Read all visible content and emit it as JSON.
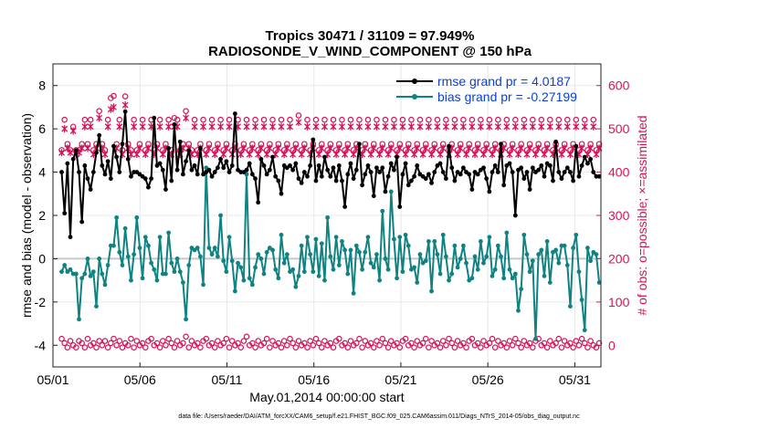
{
  "chart_data": {
    "type": "line",
    "title_line1": "Tropics 30471 / 31109 = 97.949%",
    "title_line2": "RADIOSONDE_V_WIND_COMPONENT @ 150 hPa",
    "xlabel": "May.01,2014 00:00:00 start",
    "ylabel_left": "rmse and bias (model - observation)",
    "ylabel_right": "# of obs: o=possible; ×=assimilated",
    "xlim_days": [
      0,
      31.5
    ],
    "ylim_left": [
      -5,
      9
    ],
    "ylim_right": [
      -50,
      650
    ],
    "x_tick_days": [
      0,
      5,
      10,
      15,
      20,
      25,
      30
    ],
    "x_tick_labels": [
      "05/01",
      "05/06",
      "05/11",
      "05/16",
      "05/21",
      "05/26",
      "05/31"
    ],
    "y_left_ticks": [
      -4,
      -2,
      0,
      2,
      4,
      6,
      8
    ],
    "y_right_ticks": [
      0,
      100,
      200,
      300,
      400,
      500,
      600
    ],
    "footer": "data file: /Users/raeder/DAI/ATM_forcXX/CAM6_setup/f.e21.FHIST_BGC.f09_025.CAM6assim.011/Diags_NTrS_2014-05/obs_diag_output.nc",
    "colors": {
      "rmse": "#000000",
      "bias": "#0f8282",
      "obs_counts": "#d4145a",
      "legend_text": "#0a3fd8",
      "zero_line": "#c8c8c8"
    },
    "series": [
      {
        "name": "rmse",
        "legend": "rmse grand pr = 4.0187",
        "values": [
          4.0,
          2.1,
          4.4,
          1.0,
          4.6,
          5.0,
          4.0,
          1.7,
          4.3,
          3.7,
          3.2,
          4.0,
          4.9,
          5.7,
          4.3,
          3.9,
          4.5,
          3.7,
          5.2,
          4.7,
          4.0,
          5.3,
          6.8,
          4.6,
          3.8,
          4.0,
          4.0,
          3.9,
          3.8,
          3.7,
          3.3,
          3.7,
          6.5,
          4.3,
          4.4,
          4.1,
          3.2,
          5.1,
          3.6,
          6.2,
          4.1,
          5.4,
          3.9,
          4.5,
          5.0,
          4.1,
          4.3,
          3.9,
          5.1,
          3.9,
          4.0,
          4.1,
          3.8,
          4.0,
          4.2,
          4.6,
          4.2,
          4.5,
          4.0,
          4.3,
          6.7,
          4.1,
          4.0,
          4.0,
          4.1,
          4.4,
          3.9,
          3.7,
          2.6,
          4.6,
          4.3,
          3.9,
          4.1,
          4.7,
          3.8,
          3.6,
          3.0,
          4.3,
          4.2,
          4.3,
          4.1,
          4.4,
          3.7,
          3.5,
          4.0,
          3.8,
          4.3,
          5.5,
          3.6,
          4.3,
          3.8,
          4.7,
          4.1,
          3.8,
          4.2,
          3.6,
          4.3,
          3.6,
          2.4,
          3.9,
          4.4,
          3.7,
          4.1,
          5.3,
          3.4,
          3.9,
          4.3,
          4.0,
          2.9,
          4.2,
          4.0,
          4.2,
          3.1,
          3.8,
          4.4,
          4.1,
          4.7,
          2.4,
          3.9,
          4.4,
          3.4,
          3.6,
          3.8,
          4.3,
          3.9,
          3.8,
          3.7,
          3.9,
          3.5,
          4.0,
          4.3,
          4.4,
          4.0,
          3.7,
          5.2,
          4.2,
          3.6,
          4.0,
          3.9,
          4.2,
          4.0,
          3.9,
          3.2,
          4.0,
          3.9,
          4.1,
          4.2,
          3.7,
          3.1,
          4.0,
          4.3,
          4.0,
          5.3,
          3.4,
          4.3,
          4.4,
          4.0,
          2.0,
          4.1,
          4.2,
          3.7,
          4.0,
          3.2,
          4.2,
          4.0,
          4.1,
          4.3,
          3.8,
          4.4,
          4.3,
          3.6,
          5.4,
          4.0,
          3.7,
          4.0,
          4.2,
          4.0,
          3.6,
          5.2,
          3.8,
          4.3,
          4.7,
          4.4,
          4.6,
          4.0,
          3.8,
          3.8
        ],
        "count": 187
      },
      {
        "name": "bias",
        "legend": "bias grand pr = -0.27199",
        "values": [
          -0.6,
          -0.3,
          -0.6,
          -0.5,
          -0.7,
          -0.7,
          -2.8,
          -0.9,
          -0.7,
          0.0,
          -0.8,
          -0.6,
          -2.2,
          0.0,
          -0.7,
          -1.2,
          -0.3,
          0.6,
          0.6,
          1.9,
          0.3,
          -0.3,
          1.4,
          0.1,
          -1.0,
          0.2,
          1.9,
          0.5,
          -0.9,
          1.0,
          0.6,
          -0.2,
          -0.5,
          -1.0,
          1.0,
          -0.7,
          -0.7,
          1.2,
          -0.2,
          -0.6,
          0.0,
          -0.6,
          -1.1,
          -2.8,
          -0.3,
          0.5,
          0.4,
          0.5,
          0.1,
          -1.2,
          4.2,
          0.5,
          0.2,
          0.5,
          0.1,
          2.0,
          -0.1,
          -0.6,
          1.0,
          -0.1,
          -1.5,
          -0.2,
          -0.4,
          -1.0,
          3.9,
          -0.9,
          -1.2,
          -0.4,
          0.2,
          0.0,
          -0.7,
          0.3,
          0.5,
          0.4,
          -0.5,
          -0.9,
          1.1,
          -0.2,
          0.2,
          -0.6,
          -0.5,
          -1.3,
          -0.8,
          0.6,
          -0.6,
          1.0,
          0.2,
          -0.6,
          0.9,
          -0.8,
          0.7,
          -1.0,
          1.9,
          0.1,
          -0.5,
          1.0,
          -0.3,
          0.8,
          0.4,
          -0.7,
          0.4,
          -1.6,
          0.6,
          0.3,
          -0.5,
          0.3,
          1.0,
          -0.2,
          -0.4,
          0.2,
          -1.0,
          2.2,
          0.0,
          -0.5,
          3.1,
          0.9,
          -0.9,
          1.0,
          -0.6,
          1.1,
          0.6,
          -0.5,
          -0.4,
          -1.1,
          0.2,
          -0.2,
          -0.1,
          0.8,
          -1.5,
          0.8,
          0.2,
          -0.7,
          1.1,
          0.1,
          -1.0,
          -0.7,
          0.6,
          -0.4,
          0.0,
          0.6,
          -0.2,
          -1.0,
          -0.9,
          0.1,
          -0.5,
          0.8,
          -0.2,
          0.1,
          1.0,
          -0.8,
          -0.5,
          0.6,
          0.1,
          -0.9,
          1.2,
          -0.5,
          -0.9,
          -0.7,
          -2.4,
          -1.4,
          1.1,
          0.2,
          -0.6,
          -0.1,
          -3.7,
          0.2,
          0.4,
          -0.8,
          0.8,
          -1.1,
          0.3,
          0.4,
          -0.2,
          0.6,
          0.6,
          -0.3,
          -2.2,
          0.5,
          1.1,
          -0.6,
          -1.9,
          -3.3,
          0.5,
          -0.1,
          0.3,
          0.2,
          -1.1
        ]
      },
      {
        "name": "obs_possible",
        "marker": "o",
        "values": [
          451,
          521,
          465,
          451,
          505,
          451,
          451,
          465,
          521,
          465,
          521,
          451,
          465,
          541,
          465,
          451,
          521,
          571,
          576,
          465,
          521,
          451,
          575,
          465,
          451,
          521,
          451,
          465,
          521,
          451,
          465,
          521,
          451,
          465,
          521,
          451,
          465,
          521,
          451,
          525,
          521,
          451,
          465,
          541,
          465,
          451,
          521,
          451,
          465,
          521,
          451,
          465,
          521,
          451,
          465,
          521,
          451,
          465,
          521,
          451,
          465,
          521,
          451,
          465,
          521,
          451,
          465,
          521,
          451,
          465,
          521,
          451,
          465,
          521,
          451,
          465,
          521,
          451,
          465,
          521,
          451,
          465,
          531,
          451,
          465,
          521,
          451,
          465,
          521,
          451,
          465,
          521,
          451,
          465,
          521,
          451,
          465,
          521,
          451,
          465,
          521,
          451,
          465,
          521,
          451,
          465,
          521,
          451,
          465,
          521,
          451,
          465,
          521,
          451,
          465,
          521,
          451,
          465,
          521,
          451,
          465,
          521,
          451,
          465,
          521,
          451,
          465,
          521,
          451,
          465,
          521,
          451,
          465,
          521,
          451,
          465,
          521,
          451,
          465,
          521,
          451,
          465,
          521,
          451,
          465,
          521,
          451,
          465,
          521,
          451,
          465,
          521,
          451,
          465,
          521,
          451,
          465,
          521,
          451,
          465,
          521,
          451,
          465,
          521,
          451,
          465,
          521,
          451,
          465,
          521,
          451,
          465,
          521,
          451,
          465,
          521,
          451,
          465,
          521,
          451,
          465,
          521,
          451,
          465,
          521,
          451,
          465,
          521,
          451,
          465,
          521,
          451,
          465,
          521,
          451,
          465,
          521,
          451,
          465,
          521,
          451,
          465,
          521,
          451,
          465,
          521,
          451,
          465,
          521,
          451,
          465,
          521,
          451,
          465,
          521,
          451,
          465,
          521,
          451,
          465,
          521,
          451,
          465,
          521,
          451,
          465
        ],
        "count": 187
      },
      {
        "name": "obs_assimilated",
        "marker": "x",
        "values": [
          445,
          500,
          455,
          445,
          495,
          441,
          445,
          455,
          505,
          455,
          505,
          441,
          455,
          525,
          455,
          441,
          505,
          545,
          550,
          455,
          505,
          441,
          555,
          455,
          441,
          505,
          441,
          455,
          505,
          441,
          455,
          505,
          441,
          455,
          505,
          441,
          455,
          505,
          441,
          505,
          505,
          441,
          455,
          525,
          455,
          441,
          505,
          441,
          455,
          505,
          441,
          455,
          505,
          441,
          455,
          505,
          441,
          455,
          505,
          441,
          455,
          505,
          441,
          455,
          505,
          441,
          455,
          505,
          441,
          455,
          505,
          441,
          455,
          505,
          441,
          455,
          505,
          441,
          455,
          505,
          441,
          455,
          515,
          441,
          455,
          505,
          441,
          455,
          505,
          441,
          455,
          505,
          441,
          455,
          505,
          441,
          455,
          505,
          441,
          455,
          505,
          441,
          455,
          505,
          441,
          455,
          505,
          441,
          455,
          505,
          441,
          455,
          505,
          441,
          455,
          505,
          441,
          455,
          505,
          441,
          455,
          505,
          441,
          455,
          505,
          441,
          455,
          505,
          441,
          455,
          505,
          441,
          455,
          505,
          441,
          455,
          505,
          441,
          455,
          505,
          441,
          455,
          505,
          441,
          455,
          505,
          441,
          455,
          505,
          441,
          455,
          505,
          441,
          455,
          505,
          441,
          455,
          505,
          441,
          455,
          505,
          441,
          455,
          505,
          441,
          455,
          505,
          441,
          455,
          505,
          441,
          455,
          505,
          441,
          455,
          505,
          441,
          455,
          505,
          441,
          455,
          505,
          441,
          455,
          505,
          441,
          455,
          505,
          441,
          455,
          505,
          441,
          455,
          505,
          441,
          455,
          505,
          441,
          455,
          505,
          441,
          455,
          505,
          441,
          455,
          505,
          441,
          455,
          505,
          441,
          455,
          505,
          441,
          455,
          505,
          441,
          455,
          505,
          441,
          455,
          505,
          441,
          455,
          505,
          441,
          455
        ],
        "count": 187
      },
      {
        "name": "obs_low_possible",
        "marker": "o",
        "values": [
          15,
          5,
          -5,
          10,
          0,
          -5,
          10,
          5,
          -5,
          15,
          0,
          5,
          -5,
          10,
          0,
          10,
          -5,
          5,
          15,
          0,
          10,
          -5,
          5,
          0,
          15,
          -5,
          10,
          0,
          5,
          -5,
          10,
          15,
          0,
          5,
          -5,
          10,
          0,
          15,
          5,
          -5,
          10,
          0,
          5,
          20,
          -5,
          10,
          0,
          5,
          -5,
          10,
          15,
          0,
          5,
          -5,
          10,
          0,
          5,
          15,
          -5,
          10,
          0,
          5,
          -5,
          10,
          20,
          0,
          5,
          -5,
          10,
          0,
          5,
          15,
          -5,
          10,
          0,
          5,
          -5,
          10,
          0,
          15,
          5,
          -5,
          10,
          0,
          5,
          -5,
          10,
          0,
          15,
          5,
          -5,
          10,
          0,
          5,
          -5,
          10,
          15,
          0,
          5,
          -5,
          10,
          0,
          5,
          15,
          -5,
          10,
          0,
          5,
          -5,
          10,
          0,
          15,
          5,
          -5,
          10,
          0,
          5,
          -5,
          10,
          15,
          0,
          5,
          -5,
          10,
          0,
          5,
          15,
          -5,
          10,
          0,
          5,
          -5,
          10,
          0,
          15,
          5,
          -5,
          10,
          0,
          5,
          -5,
          10,
          15,
          0,
          5,
          -5,
          10,
          0,
          5,
          15,
          -5,
          10,
          0,
          5,
          -5,
          10,
          0,
          15,
          5,
          -5,
          10,
          0,
          5,
          -5,
          10,
          15,
          0,
          5,
          -5,
          10,
          0,
          5,
          15,
          -5,
          10,
          0,
          5,
          -5,
          10,
          0,
          15,
          5,
          -5,
          10,
          0,
          -5,
          5,
          -10
        ],
        "count": 187
      }
    ]
  }
}
